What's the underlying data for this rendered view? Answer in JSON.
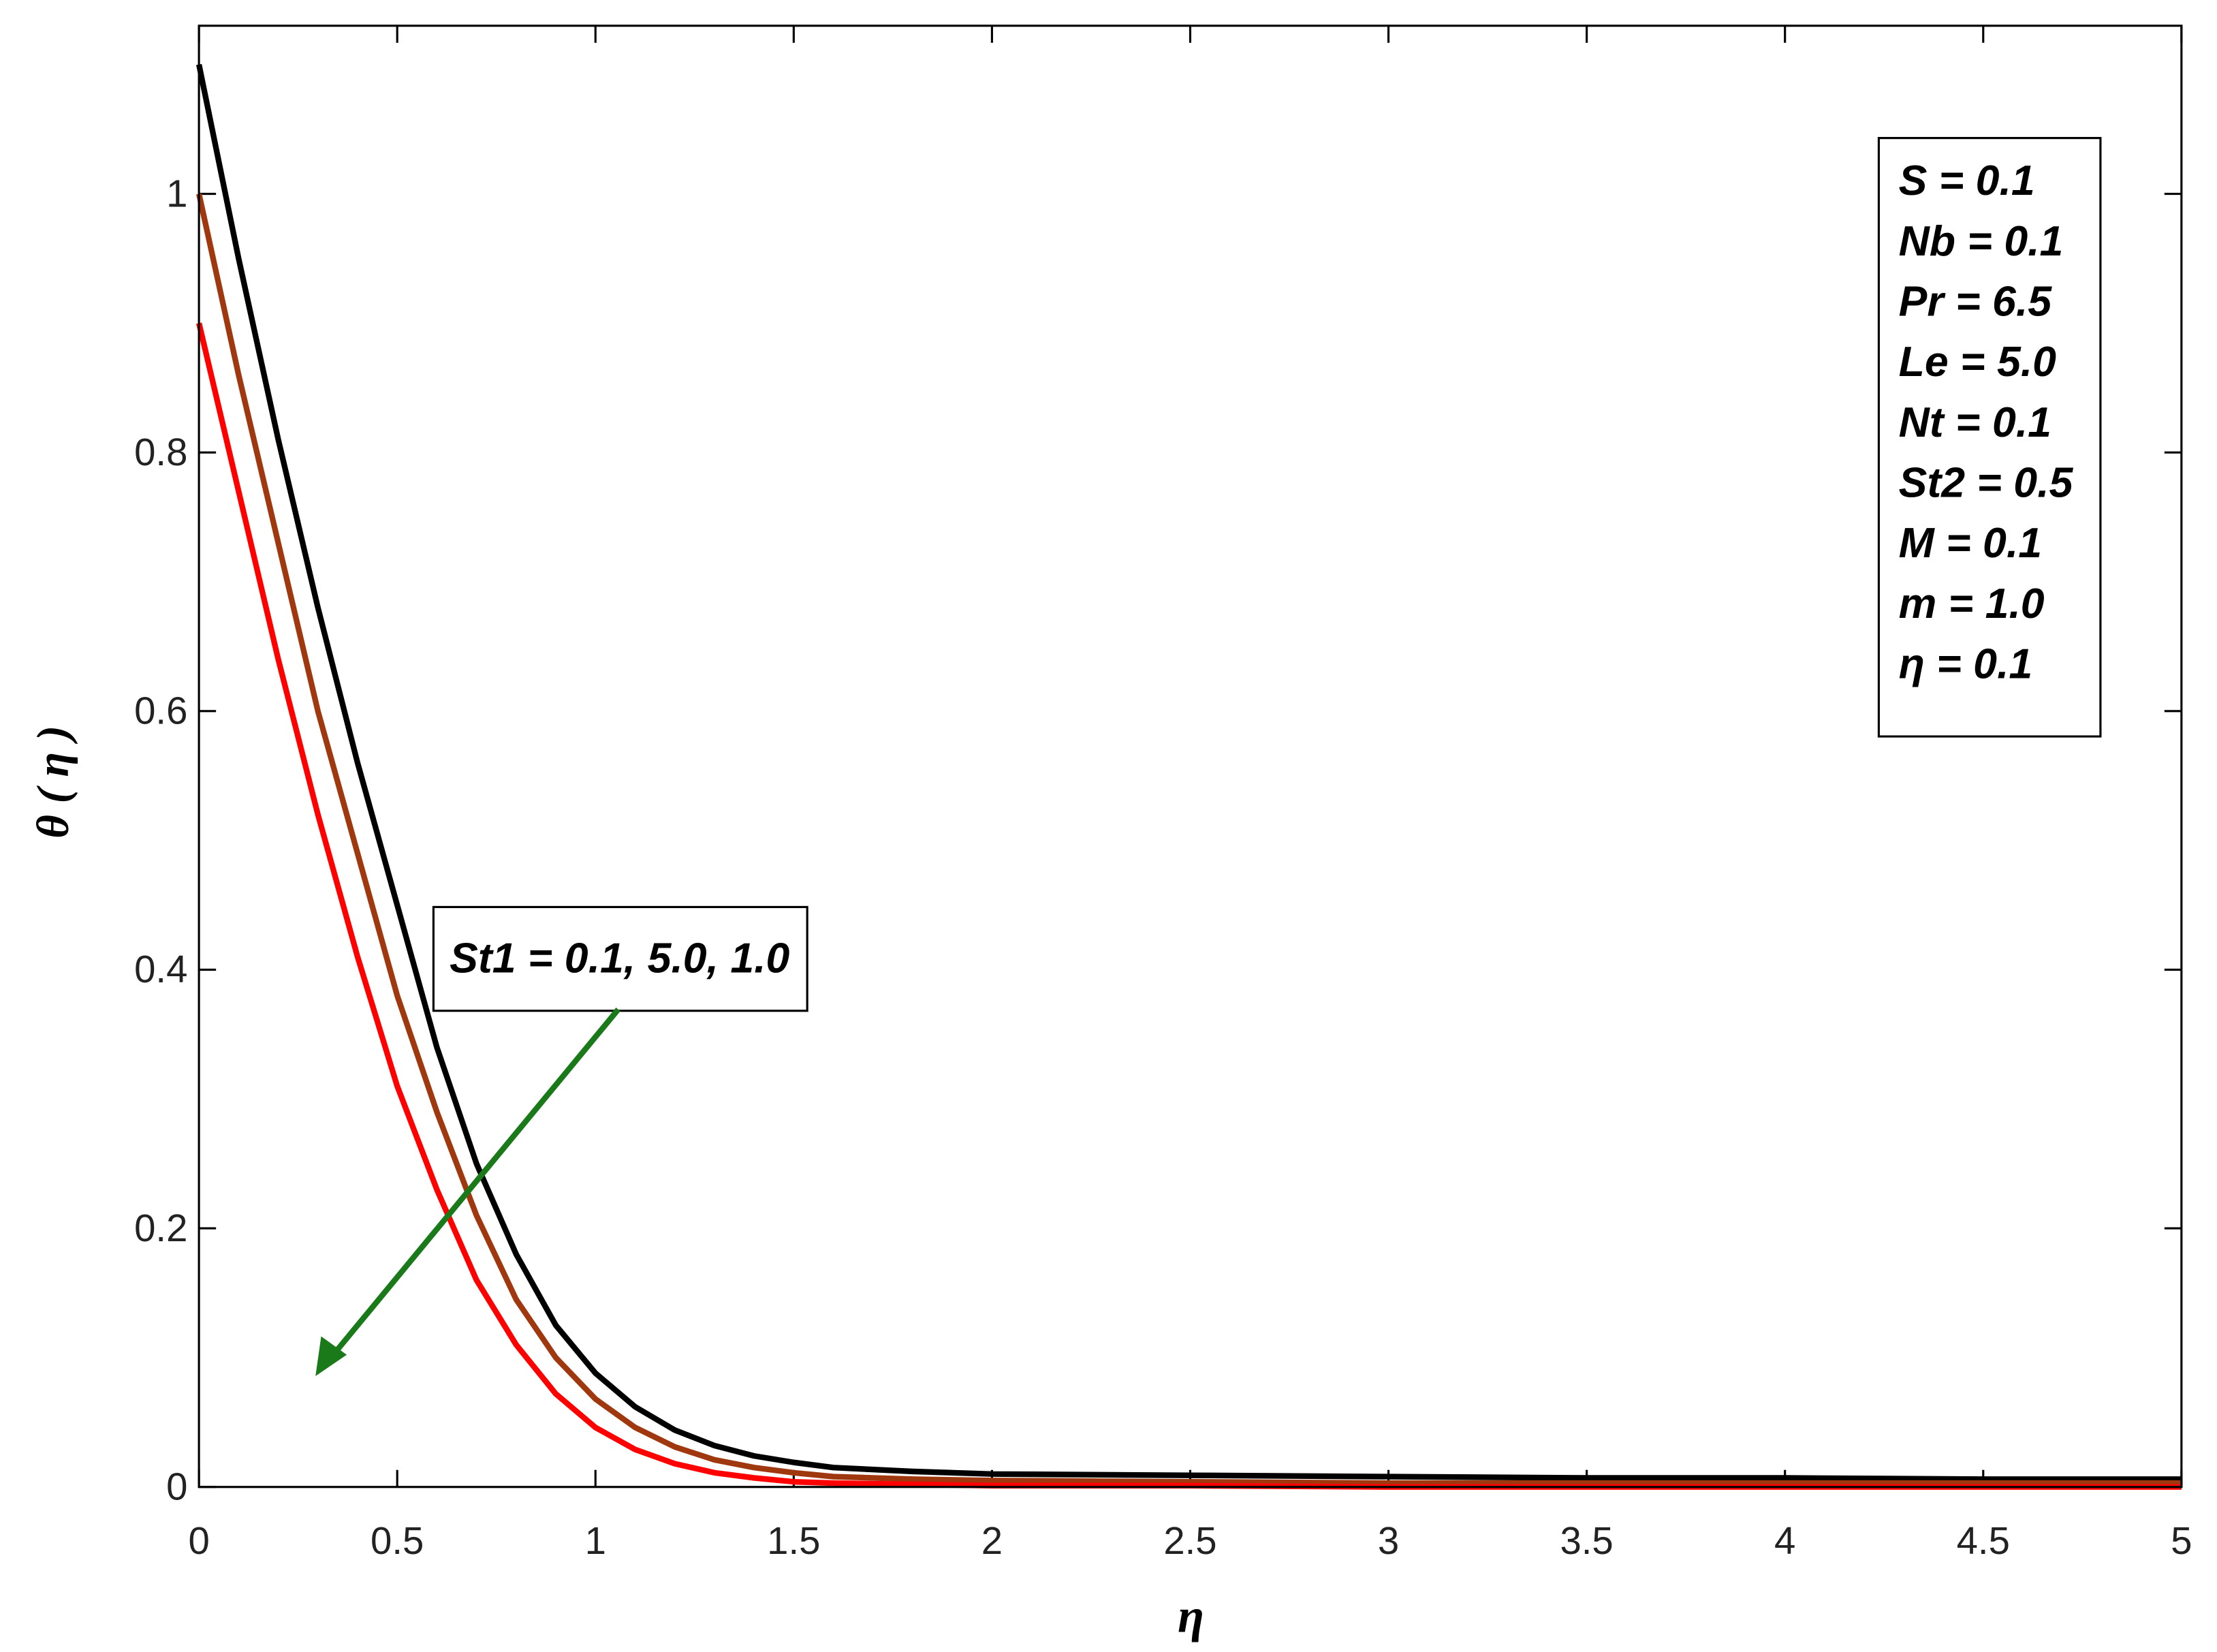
{
  "chart_data": {
    "type": "line",
    "xlabel": "η",
    "ylabel": "θ ( η )",
    "x": [
      0,
      0.1,
      0.2,
      0.3,
      0.4,
      0.5,
      0.6,
      0.7,
      0.8,
      0.9,
      1.0,
      1.1,
      1.2,
      1.3,
      1.4,
      1.5,
      1.6,
      1.8,
      2.0,
      2.5,
      3.0,
      3.5,
      4.0,
      4.5,
      5.0
    ],
    "series": [
      {
        "color": "#000000",
        "values": [
          1.1,
          0.95,
          0.81,
          0.68,
          0.56,
          0.45,
          0.34,
          0.25,
          0.18,
          0.125,
          0.088,
          0.062,
          0.044,
          0.032,
          0.024,
          0.019,
          0.015,
          0.012,
          0.01,
          0.009,
          0.008,
          0.007,
          0.007,
          0.006,
          0.006
        ]
      },
      {
        "color": "#a0380f",
        "values": [
          1.0,
          0.86,
          0.73,
          0.6,
          0.49,
          0.38,
          0.29,
          0.21,
          0.145,
          0.1,
          0.068,
          0.046,
          0.031,
          0.021,
          0.015,
          0.011,
          0.008,
          0.006,
          0.005,
          0.004,
          0.003,
          0.003,
          0.003,
          0.003,
          0.003
        ]
      },
      {
        "color": "#ff0000",
        "values": [
          0.9,
          0.77,
          0.64,
          0.52,
          0.41,
          0.31,
          0.23,
          0.16,
          0.11,
          0.072,
          0.046,
          0.029,
          0.018,
          0.011,
          0.007,
          0.004,
          0.003,
          0.002,
          0.001,
          0.001,
          0,
          0,
          0,
          0,
          0
        ]
      }
    ],
    "xlim": [
      0,
      5
    ],
    "xticks": [
      0,
      0.5,
      1,
      1.5,
      2,
      2.5,
      3,
      3.5,
      4,
      4.5,
      5
    ],
    "ylim": [
      0,
      1.13
    ],
    "yticks": [
      0,
      0.2,
      0.4,
      0.6,
      0.8,
      1
    ],
    "annotations": [
      "S = 0.1",
      "Nb  = 0.1",
      "Pr = 6.5",
      "Le = 5.0",
      "Nt  = 0.1",
      "St2 = 0.5",
      "M  = 0.1",
      "m = 1.0",
      "η = 0.1"
    ],
    "arrow_label": "St1 = 0.1, 5.0, 1.0"
  }
}
